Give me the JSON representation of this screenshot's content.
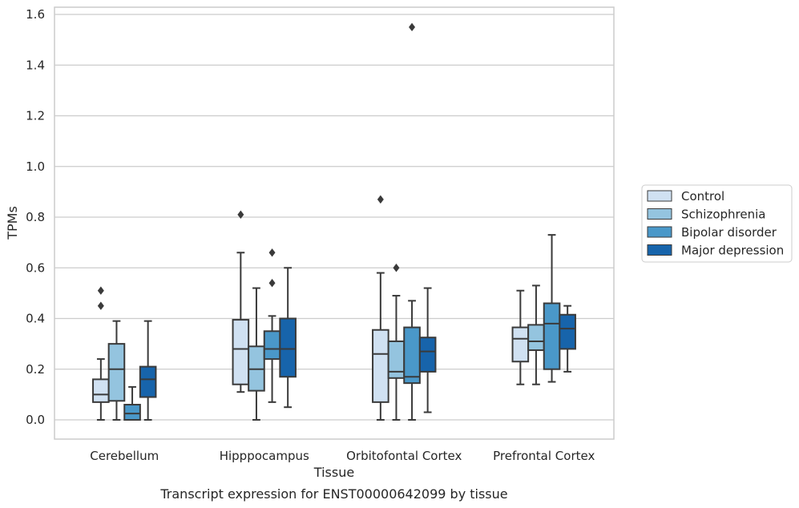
{
  "caption": "Transcript expression for ENST00000642099 by tissue",
  "colors": {
    "Control": "#d0e1f2",
    "Schizophrenia": "#94c4df",
    "Bipolar disorder": "#4a98c9",
    "Major depression": "#1764ab"
  },
  "chart_data": {
    "type": "box",
    "xlabel": "Tissue",
    "ylabel": "TPMs",
    "ylim": [
      -0.075,
      1.63
    ],
    "yticks": [
      0.0,
      0.2,
      0.4,
      0.6,
      0.8,
      1.0,
      1.2,
      1.4,
      1.6
    ],
    "ytick_labels": [
      "0.0",
      "0.2",
      "0.4",
      "0.6",
      "0.8",
      "1.0",
      "1.2",
      "1.4",
      "1.6"
    ],
    "grid": true,
    "legend_position": "right",
    "categories": [
      "Cerebellum",
      "Hipppocampus",
      "Orbitofontal Cortex",
      "Prefrontal Cortex"
    ],
    "series": [
      {
        "name": "Control",
        "boxes": [
          {
            "whislo": 0.0,
            "q1": 0.07,
            "med": 0.1,
            "q3": 0.16,
            "whishi": 0.24,
            "fliers": [
              0.45,
              0.51
            ]
          },
          {
            "whislo": 0.11,
            "q1": 0.14,
            "med": 0.28,
            "q3": 0.395,
            "whishi": 0.66,
            "fliers": [
              0.81
            ]
          },
          {
            "whislo": 0.0,
            "q1": 0.07,
            "med": 0.26,
            "q3": 0.355,
            "whishi": 0.58,
            "fliers": [
              0.87
            ]
          },
          {
            "whislo": 0.14,
            "q1": 0.23,
            "med": 0.32,
            "q3": 0.365,
            "whishi": 0.51,
            "fliers": []
          }
        ]
      },
      {
        "name": "Schizophrenia",
        "boxes": [
          {
            "whislo": 0.0,
            "q1": 0.075,
            "med": 0.2,
            "q3": 0.3,
            "whishi": 0.39,
            "fliers": []
          },
          {
            "whislo": 0.0,
            "q1": 0.115,
            "med": 0.2,
            "q3": 0.29,
            "whishi": 0.52,
            "fliers": []
          },
          {
            "whislo": 0.0,
            "q1": 0.165,
            "med": 0.19,
            "q3": 0.31,
            "whishi": 0.49,
            "fliers": [
              0.6
            ]
          },
          {
            "whislo": 0.14,
            "q1": 0.275,
            "med": 0.31,
            "q3": 0.375,
            "whishi": 0.53,
            "fliers": []
          }
        ]
      },
      {
        "name": "Bipolar disorder",
        "boxes": [
          {
            "whislo": 0.0,
            "q1": 0.0,
            "med": 0.025,
            "q3": 0.06,
            "whishi": 0.13,
            "fliers": []
          },
          {
            "whislo": 0.07,
            "q1": 0.24,
            "med": 0.28,
            "q3": 0.35,
            "whishi": 0.41,
            "fliers": [
              0.54,
              0.66
            ]
          },
          {
            "whislo": 0.0,
            "q1": 0.145,
            "med": 0.17,
            "q3": 0.365,
            "whishi": 0.47,
            "fliers": [
              1.55
            ]
          },
          {
            "whislo": 0.15,
            "q1": 0.2,
            "med": 0.38,
            "q3": 0.46,
            "whishi": 0.73,
            "fliers": []
          }
        ]
      },
      {
        "name": "Major depression",
        "boxes": [
          {
            "whislo": 0.0,
            "q1": 0.09,
            "med": 0.16,
            "q3": 0.21,
            "whishi": 0.39,
            "fliers": []
          },
          {
            "whislo": 0.05,
            "q1": 0.17,
            "med": 0.28,
            "q3": 0.4,
            "whishi": 0.6,
            "fliers": []
          },
          {
            "whislo": 0.03,
            "q1": 0.19,
            "med": 0.27,
            "q3": 0.325,
            "whishi": 0.52,
            "fliers": []
          },
          {
            "whislo": 0.19,
            "q1": 0.28,
            "med": 0.36,
            "q3": 0.415,
            "whishi": 0.45,
            "fliers": []
          }
        ]
      }
    ]
  }
}
